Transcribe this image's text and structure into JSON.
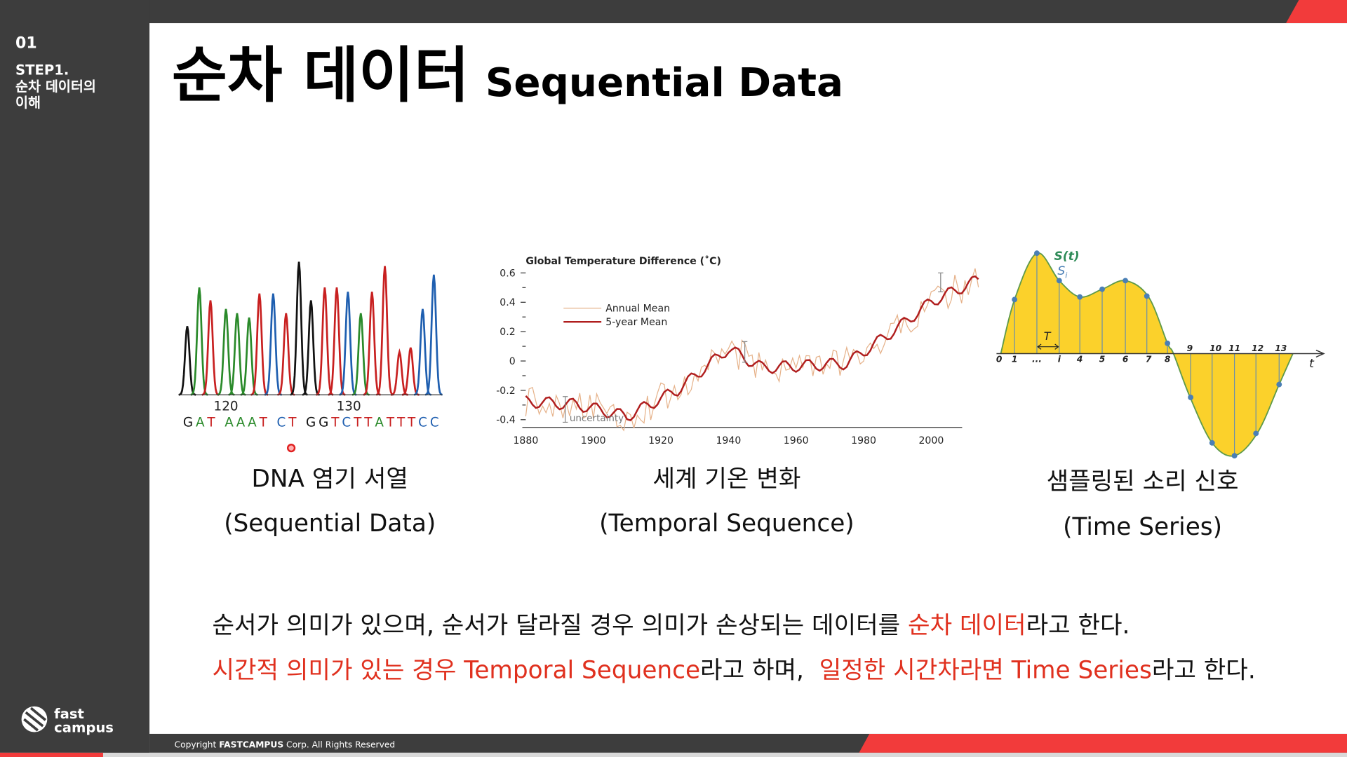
{
  "sidebar": {
    "number": "01",
    "step": "STEP1.",
    "topic": [
      "순차 데이터의",
      "이해"
    ],
    "logo": [
      "fast",
      "campus"
    ]
  },
  "header": {
    "title": "순차 데이터",
    "subtitle": "Sequential Data"
  },
  "figures": [
    {
      "positions": [
        "120",
        "130"
      ],
      "sequence": "GAT AAAT CT GGTCTTATTTCC",
      "caption": "DNA 염기 서열",
      "subcaption": "(Sequential Data)"
    },
    {
      "title": "Global Temperature Difference (˚C)",
      "yticks": [
        "0.6",
        "0.4",
        "0.2",
        "0",
        "-0.2",
        "-0.4"
      ],
      "xticks": [
        "1880",
        "1900",
        "1920",
        "1940",
        "1960",
        "1980",
        "2000"
      ],
      "legend": [
        "Annual Mean",
        "5-year Mean"
      ],
      "annotation": "uncertainty",
      "caption": "세계 기온 변화",
      "subcaption": "(Temporal Sequence)"
    },
    {
      "signal": "S(t)",
      "sample": "S",
      "sample_index": "i",
      "period": "T",
      "axis": "t",
      "ticks": [
        "0",
        "1",
        "...",
        "i",
        "4",
        "5",
        "6",
        "7",
        "8",
        "9",
        "10",
        "11",
        "12",
        "13"
      ],
      "caption": "샘플링된 소리 신호",
      "subcaption": "(Time Series)"
    }
  ],
  "body": {
    "lines": [
      [
        {
          "text": "순서가 의미가 있으며, 순서가 달라질 경우 의미가 손상되는 데이터를 ",
          "highlight": false
        },
        {
          "text": "순차 데이터",
          "highlight": true
        },
        {
          "text": "라고 한다.",
          "highlight": false
        }
      ],
      [
        {
          "text": "시간적 의미가 있는 경우 Temporal Sequence",
          "highlight": true
        },
        {
          "text": "라고 하며,  ",
          "highlight": false
        },
        {
          "text": "일정한 시간차라면 Time Series",
          "highlight": true
        },
        {
          "text": "라고 한다.",
          "highlight": false
        }
      ]
    ]
  },
  "footer": {
    "copyright": [
      "Copyright ",
      "FASTCAMPUS",
      " Corp. All Rights Reserved"
    ]
  }
}
